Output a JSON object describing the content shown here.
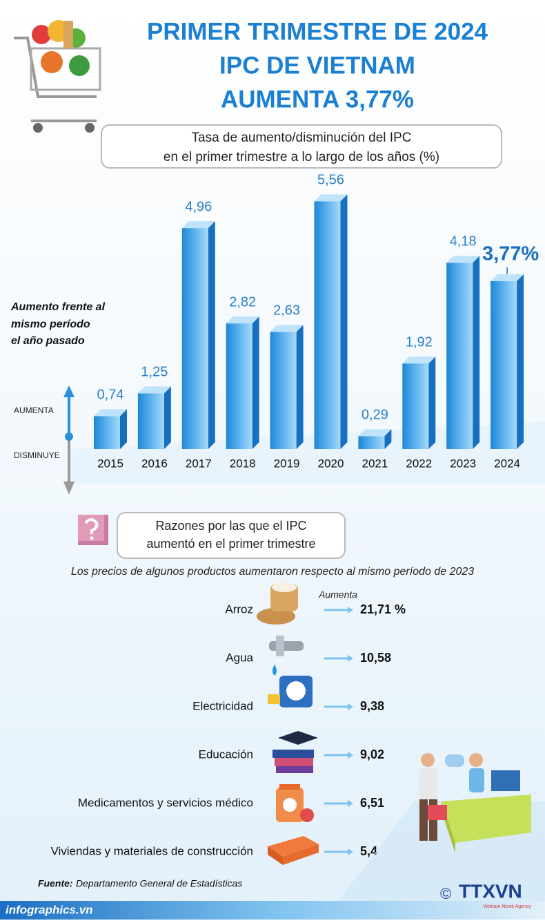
{
  "header": {
    "title_lines": [
      "PRIMER TRIMESTRE DE 2024",
      "IPC DE VIETNAM",
      "AUMENTA 3,77%"
    ]
  },
  "chart_data": {
    "type": "bar",
    "title": "Tasa de aumento/disminución del IPC",
    "subtitle": "en el primer trimestre a lo largo de los años (%)",
    "annotation": [
      "Aumento frente al",
      "mismo período",
      "el año pasado"
    ],
    "axis_up_label": "AUMENTA",
    "axis_down_label": "DISMINUYE",
    "categories": [
      "2015",
      "2016",
      "2017",
      "2018",
      "2019",
      "2020",
      "2021",
      "2022",
      "2023",
      "2024"
    ],
    "values": [
      0.74,
      1.25,
      4.96,
      2.82,
      2.63,
      5.56,
      0.29,
      1.92,
      4.18,
      3.77
    ],
    "value_labels": [
      "0,74",
      "1,25",
      "4,96",
      "2,82",
      "2,63",
      "5,56",
      "0,29",
      "1,92",
      "4,18",
      "3,77%"
    ],
    "color": "#3d9fe6"
  },
  "reasons": {
    "title_lines": [
      "Razones por las que el IPC",
      "aumentó en el primer trimestre"
    ],
    "subtitle": "Los precios de algunos productos aumentaron respecto al mismo período de 2023",
    "column_header": "Aumenta",
    "items": [
      {
        "label": "Arroz",
        "value": "21,71 %"
      },
      {
        "label": "Agua",
        "value": "10,58"
      },
      {
        "label": "Electricidad",
        "value": "9,38"
      },
      {
        "label": "Educación",
        "value": "9,02"
      },
      {
        "label": "Medicamentos y servicios médico",
        "value": "6,51"
      },
      {
        "label": "Viviendas y materiales de construcción",
        "value": "5,4"
      }
    ]
  },
  "footer": {
    "source_label": "Fuente:",
    "source": "Departamento General de Estadísticas",
    "site": "infographics.vn",
    "copyright": "©",
    "agency": "TTXVN",
    "agency_sub": "Vietnam News Agency"
  }
}
